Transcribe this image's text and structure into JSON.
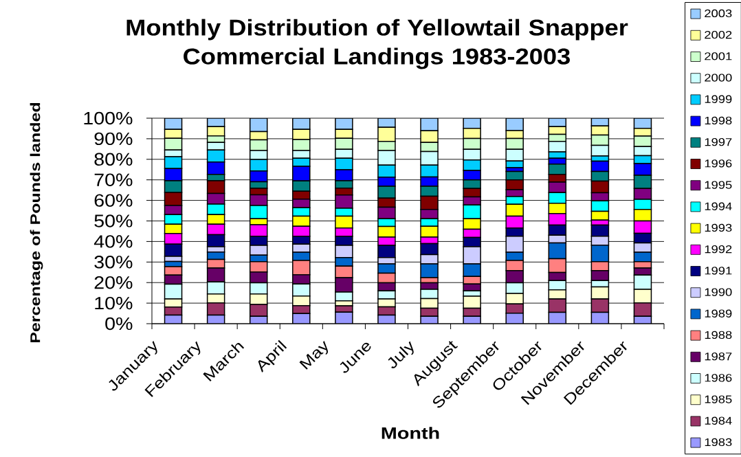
{
  "chart_data": {
    "type": "bar",
    "stacked": true,
    "title": "Monthly Distribution of Yellowtail Snapper Commercial Landings 1983-2003",
    "xlabel": "Month",
    "ylabel": "Percentage of Pounds landed",
    "categories": [
      "January",
      "February",
      "March",
      "April",
      "May",
      "June",
      "July",
      "August",
      "September",
      "October",
      "November",
      "December"
    ],
    "series": [
      {
        "name": "1983",
        "color": "#9999ff",
        "values": [
          4.2,
          4.2,
          3.6,
          4.9,
          5.6,
          4.2,
          3.6,
          3.6,
          5.1,
          5.5,
          5.5,
          3.6
        ]
      },
      {
        "name": "1984",
        "color": "#993366",
        "values": [
          3.9,
          5.9,
          5.8,
          3.9,
          3.1,
          4.0,
          3.9,
          3.9,
          4.5,
          6.5,
          6.5,
          6.5
        ]
      },
      {
        "name": "1985",
        "color": "#ffffcc",
        "values": [
          3.9,
          4.4,
          5.1,
          4.7,
          2.4,
          3.8,
          4.7,
          5.9,
          5.1,
          4.5,
          5.9,
          6.6
        ]
      },
      {
        "name": "1986",
        "color": "#ccffff",
        "values": [
          7.2,
          5.8,
          5.4,
          5.8,
          4.3,
          4.0,
          4.5,
          2.6,
          5.2,
          4.5,
          3.1,
          7.0
        ]
      },
      {
        "name": "1987",
        "color": "#660066",
        "values": [
          4.5,
          6.8,
          5.3,
          4.5,
          7.0,
          3.9,
          3.2,
          3.3,
          5.9,
          3.9,
          4.8,
          3.4
        ]
      },
      {
        "name": "1988",
        "color": "#ff8080",
        "values": [
          4.1,
          4.2,
          5.0,
          7.0,
          5.6,
          4.7,
          2.5,
          3.7,
          5.0,
          6.7,
          4.4,
          3.1
        ]
      },
      {
        "name": "1989",
        "color": "#0066cc",
        "values": [
          2.5,
          3.6,
          3.2,
          4.0,
          4.2,
          4.5,
          6.7,
          6.1,
          4.0,
          7.7,
          8.0,
          4.6
        ]
      },
      {
        "name": "1990",
        "color": "#ccccff",
        "values": [
          2.5,
          2.6,
          4.7,
          3.9,
          5.9,
          3.1,
          4.5,
          8.4,
          7.8,
          3.8,
          4.4,
          4.5
        ]
      },
      {
        "name": "1991",
        "color": "#000080",
        "values": [
          5.9,
          5.8,
          4.5,
          3.9,
          4.5,
          5.9,
          5.4,
          4.5,
          4.0,
          4.9,
          5.4,
          4.7
        ]
      },
      {
        "name": "1992",
        "color": "#ff00ff",
        "values": [
          5.2,
          5.1,
          5.6,
          4.8,
          4.0,
          4.0,
          3.1,
          4.0,
          5.7,
          5.6,
          2.4,
          6.0
        ]
      },
      {
        "name": "1993",
        "color": "#ffff00",
        "values": [
          4.5,
          4.7,
          2.9,
          4.9,
          5.7,
          5.2,
          5.3,
          5.1,
          5.8,
          5.0,
          4.3,
          5.6
        ]
      },
      {
        "name": "1994",
        "color": "#00ffff",
        "values": [
          4.7,
          5.1,
          6.4,
          4.1,
          3.9,
          3.8,
          3.7,
          6.7,
          3.8,
          5.2,
          5.1,
          4.9
        ]
      },
      {
        "name": "1995",
        "color": "#800080",
        "values": [
          4.4,
          5.2,
          5.2,
          4.2,
          6.4,
          5.6,
          4.5,
          3.9,
          3.3,
          5.1,
          3.9,
          5.3
        ]
      },
      {
        "name": "1996",
        "color": "#800000",
        "values": [
          6.4,
          6.2,
          3.2,
          3.9,
          3.4,
          4.4,
          6.4,
          4.1,
          4.8,
          3.8,
          5.7,
          0
        ]
      },
      {
        "name": "1997",
        "color": "#008080",
        "values": [
          5.7,
          3.1,
          3.2,
          5.0,
          3.6,
          5.8,
          4.9,
          4.2,
          4.1,
          5.0,
          4.7,
          6.4
        ]
      },
      {
        "name": "1998",
        "color": "#0000ff",
        "values": [
          5.9,
          6.0,
          5.2,
          7.1,
          5.3,
          4.4,
          4.5,
          4.6,
          1.8,
          2.8,
          5.0,
          5.7
        ]
      },
      {
        "name": "1999",
        "color": "#00ccff",
        "values": [
          5.8,
          5.8,
          5.6,
          3.9,
          5.6,
          5.9,
          5.8,
          5.1,
          3.3,
          3.1,
          2.5,
          3.9
        ]
      },
      {
        "name": "2000",
        "color": "#ccffff",
        "values": [
          3.2,
          3.7,
          4.4,
          3.8,
          4.4,
          7.1,
          6.6,
          5.2,
          5.7,
          5.1,
          5.2,
          4.4
        ]
      },
      {
        "name": "2001",
        "color": "#ccffcc",
        "values": [
          5.7,
          3.2,
          5.2,
          5.3,
          5.3,
          4.4,
          4.4,
          5.2,
          5.2,
          3.4,
          5.0,
          5.1
        ]
      },
      {
        "name": "2002",
        "color": "#ffff99",
        "values": [
          4.4,
          4.5,
          4.0,
          5.0,
          4.4,
          6.9,
          5.7,
          5.0,
          3.9,
          3.8,
          4.4,
          3.8
        ]
      },
      {
        "name": "2003",
        "color": "#99ccff",
        "values": [
          5.4,
          4.1,
          6.5,
          5.4,
          5.4,
          4.4,
          6.1,
          4.9,
          6.0,
          4.1,
          3.8,
          4.9
        ]
      }
    ],
    "ylim": [
      0,
      100
    ],
    "yticks": [
      {
        "value": 0,
        "label": "0%"
      },
      {
        "value": 10,
        "label": "10%"
      },
      {
        "value": 20,
        "label": "20%"
      },
      {
        "value": 30,
        "label": "30%"
      },
      {
        "value": 40,
        "label": "40%"
      },
      {
        "value": 50,
        "label": "50%"
      },
      {
        "value": 60,
        "label": "60%"
      },
      {
        "value": 70,
        "label": "70%"
      },
      {
        "value": 80,
        "label": "80%"
      },
      {
        "value": 90,
        "label": "90%"
      },
      {
        "value": 100,
        "label": "100%"
      }
    ],
    "grid": "y",
    "legend": "right"
  }
}
